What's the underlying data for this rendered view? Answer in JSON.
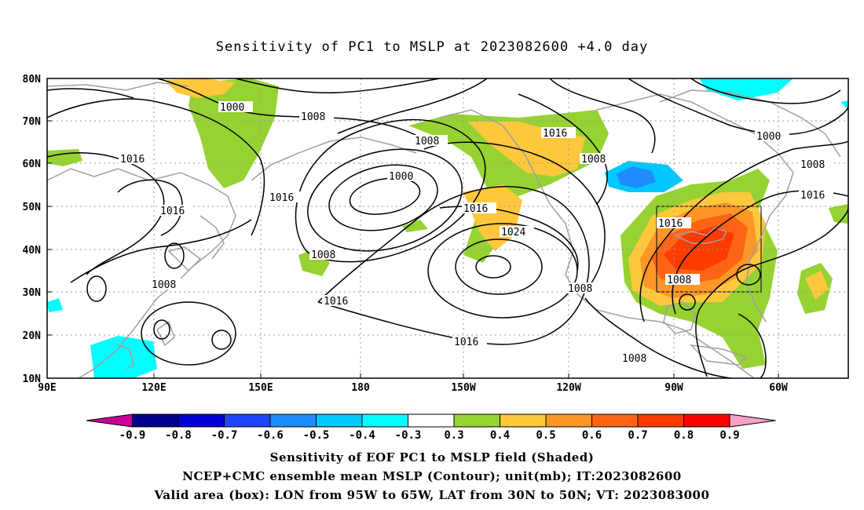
{
  "title": "Sensitivity of PC1 to MSLP at 2023082600 +4.0 day",
  "lat_labels": [
    "80N",
    "70N",
    "60N",
    "50N",
    "40N",
    "30N",
    "20N",
    "10N"
  ],
  "lon_labels": [
    "90E",
    "120E",
    "150E",
    "180",
    "150W",
    "120W",
    "90W",
    "60W"
  ],
  "contour_labels": [
    "1000",
    "1008",
    "1008",
    "1016",
    "1016",
    "1016",
    "1000",
    "1008",
    "1016",
    "1024",
    "1016",
    "1016",
    "1008",
    "1008",
    "1008",
    "1016",
    "1000",
    "1008",
    "1016",
    "1016",
    "1008"
  ],
  "colorbar": {
    "labels": [
      "-0.9",
      "-0.8",
      "-0.7",
      "-0.6",
      "-0.5",
      "-0.4",
      "-0.3",
      "0.3",
      "0.4",
      "0.5",
      "0.6",
      "0.7",
      "0.8",
      "0.9"
    ],
    "colors": [
      "#c8009b",
      "#00008c",
      "#0000d2",
      "#1e46ff",
      "#1e8cff",
      "#00c8ff",
      "#00ffff",
      "#ffffff",
      "#96d232",
      "#ffc83c",
      "#ff9628",
      "#ff6414",
      "#ff3c00",
      "#ff0000",
      "#ffa0c8"
    ]
  },
  "captions": [
    "Sensitivity of EOF PC1 to MSLP field (Shaded)",
    "NCEP+CMC ensemble mean MSLP (Contour); unit(mb); IT:2023082600",
    "Valid area (box): LON from 95W to 65W, LAT from 30N to 50N; VT: 2023083000"
  ]
}
